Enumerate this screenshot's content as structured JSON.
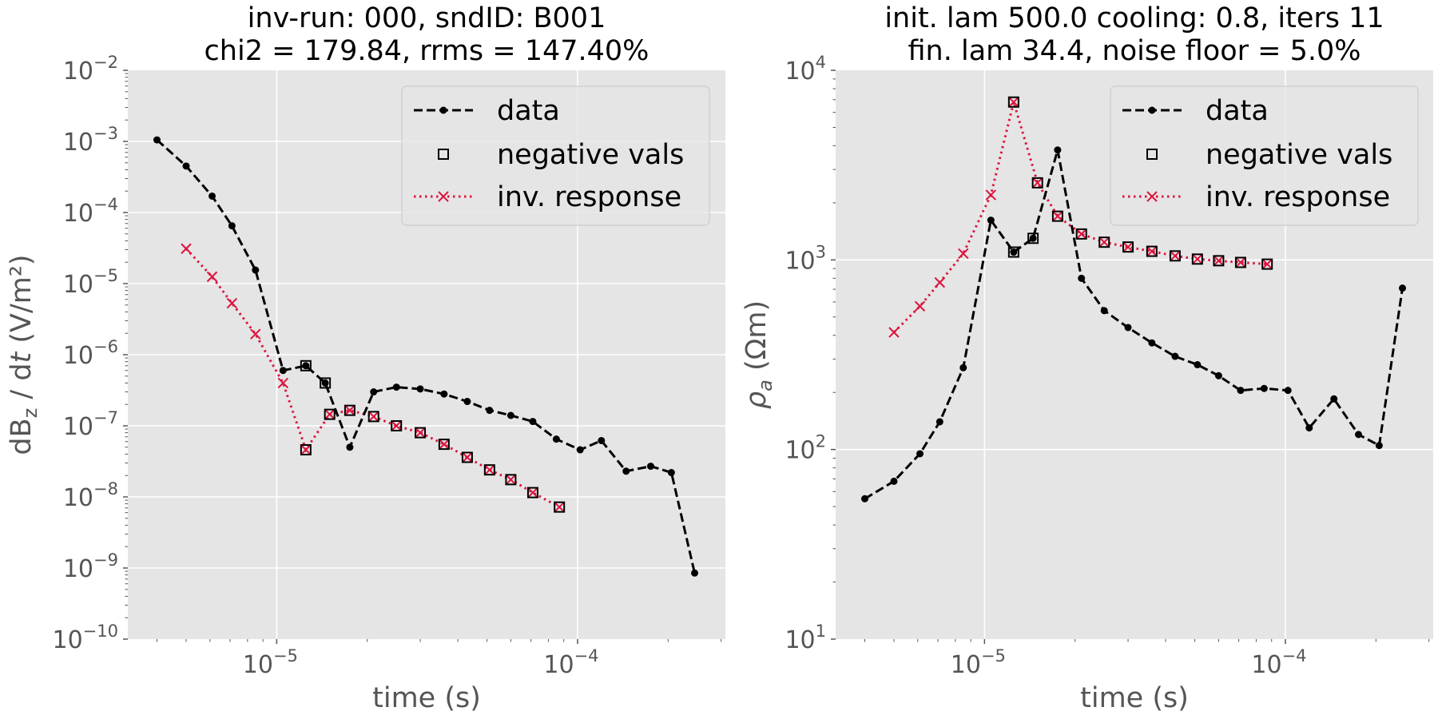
{
  "chart_data": [
    {
      "type": "line",
      "title_lines": [
        "inv-run: 000, sndID: B001",
        "chi2 = 179.84, rrms = 147.40%"
      ],
      "xlabel": "time (s)",
      "ylabel": "dB_z / dt (V/m²)",
      "ylabel_parts": {
        "main": "dB",
        "sub": "z",
        "mid": " / d",
        "italic": "t",
        "unit": " (V/m²)"
      },
      "xscale": "log",
      "yscale": "log",
      "xlim": [
        3.2e-06,
        0.00031
      ],
      "ylim": [
        1e-10,
        0.01
      ],
      "xticks": [
        {
          "base": "10",
          "exp": "−5",
          "value": 1e-05
        },
        {
          "base": "10",
          "exp": "−4",
          "value": 0.0001
        }
      ],
      "yticks": [
        {
          "base": "10",
          "exp": "−10",
          "value": 1e-10
        },
        {
          "base": "10",
          "exp": "−9",
          "value": 1e-09
        },
        {
          "base": "10",
          "exp": "−8",
          "value": 1e-08
        },
        {
          "base": "10",
          "exp": "−7",
          "value": 1e-07
        },
        {
          "base": "10",
          "exp": "−6",
          "value": 1e-06
        },
        {
          "base": "10",
          "exp": "−5",
          "value": 1e-05
        },
        {
          "base": "10",
          "exp": "−4",
          "value": 0.0001
        },
        {
          "base": "10",
          "exp": "−3",
          "value": 0.001
        },
        {
          "base": "10",
          "exp": "−2",
          "value": 0.01
        }
      ],
      "grid": true,
      "legend_position": "top-right",
      "legend": [
        "data",
        "negative vals",
        "inv. response"
      ],
      "series": [
        {
          "name": "data",
          "color": "#000000",
          "style": "dashed",
          "marker": "dot",
          "x": [
            4e-06,
            5e-06,
            6.1e-06,
            7.1e-06,
            8.5e-06,
            1.05e-05,
            1.25e-05,
            1.45e-05,
            1.75e-05,
            2.1e-05,
            2.5e-05,
            3e-05,
            3.6e-05,
            4.3e-05,
            5.1e-05,
            6e-05,
            7.1e-05,
            8.5e-05,
            0.000102,
            0.00012,
            0.000145,
            0.000175,
            0.000205,
            0.000245
          ],
          "y": [
            0.00105,
            0.00045,
            0.00017,
            6.5e-05,
            1.55e-05,
            6e-07,
            7e-07,
            4e-07,
            5e-08,
            3e-07,
            3.5e-07,
            3.3e-07,
            2.8e-07,
            2.2e-07,
            1.65e-07,
            1.4e-07,
            1.15e-07,
            6.5e-08,
            4.6e-08,
            6.2e-08,
            2.3e-08,
            2.7e-08,
            2.2e-08,
            8.5e-10
          ]
        },
        {
          "name": "negative vals",
          "color": "#000000",
          "style": "none",
          "marker": "square",
          "x": [
            1.25e-05,
            1.45e-05,
            1.25e-05,
            1.5e-05,
            1.75e-05,
            2.1e-05,
            2.5e-05,
            3e-05,
            3.6e-05,
            4.3e-05,
            5.1e-05,
            6e-05,
            7.1e-05,
            8.7e-05
          ],
          "y": [
            7e-07,
            4e-07,
            4.6e-08,
            1.45e-07,
            1.65e-07,
            1.35e-07,
            1e-07,
            8e-08,
            5.5e-08,
            3.6e-08,
            2.4e-08,
            1.75e-08,
            1.15e-08,
            7.2e-09
          ]
        },
        {
          "name": "inv. response",
          "color": "#dc143c",
          "style": "dotted",
          "marker": "x",
          "x": [
            5e-06,
            6.1e-06,
            7.1e-06,
            8.5e-06,
            1.05e-05,
            1.25e-05,
            1.5e-05,
            1.75e-05,
            2.1e-05,
            2.5e-05,
            3e-05,
            3.6e-05,
            4.3e-05,
            5.1e-05,
            6e-05,
            7.1e-05,
            8.7e-05
          ],
          "y": [
            3.1e-05,
            1.25e-05,
            5.3e-06,
            1.95e-06,
            4e-07,
            4.6e-08,
            1.45e-07,
            1.65e-07,
            1.35e-07,
            1e-07,
            8e-08,
            5.5e-08,
            3.6e-08,
            2.4e-08,
            1.75e-08,
            1.15e-08,
            7.2e-09
          ]
        }
      ]
    },
    {
      "type": "line",
      "title_lines": [
        "init. lam 500.0 cooling: 0.8, iters 11",
        "fin. lam 34.4, noise floor = 5.0%"
      ],
      "xlabel": "time (s)",
      "ylabel": "ρa (Ωm)",
      "ylabel_parts": {
        "main": "ρ",
        "sub": "a",
        "unit": " (Ωm)"
      },
      "xscale": "log",
      "yscale": "log",
      "xlim": [
        3.2e-06,
        0.00031
      ],
      "ylim": [
        10,
        10000
      ],
      "xticks": [
        {
          "base": "10",
          "exp": "−5",
          "value": 1e-05
        },
        {
          "base": "10",
          "exp": "−4",
          "value": 0.0001
        }
      ],
      "yticks": [
        {
          "base": "10",
          "exp": "1",
          "value": 10
        },
        {
          "base": "10",
          "exp": "2",
          "value": 100
        },
        {
          "base": "10",
          "exp": "3",
          "value": 1000
        },
        {
          "base": "10",
          "exp": "4",
          "value": 10000
        }
      ],
      "grid": true,
      "legend_position": "top-right",
      "legend": [
        "data",
        "negative vals",
        "inv. response"
      ],
      "series": [
        {
          "name": "data",
          "color": "#000000",
          "style": "dashed",
          "marker": "dot",
          "x": [
            4e-06,
            5e-06,
            6.1e-06,
            7.1e-06,
            8.5e-06,
            1.05e-05,
            1.25e-05,
            1.45e-05,
            1.75e-05,
            2.1e-05,
            2.5e-05,
            3e-05,
            3.6e-05,
            4.3e-05,
            5.1e-05,
            6e-05,
            7.1e-05,
            8.5e-05,
            0.000102,
            0.00012,
            0.000145,
            0.000175,
            0.000205,
            0.000245
          ],
          "y": [
            55,
            68,
            95,
            140,
            270,
            1620,
            1100,
            1300,
            3800,
            800,
            540,
            440,
            365,
            310,
            280,
            245,
            205,
            210,
            205,
            130,
            185,
            120,
            105,
            710
          ]
        },
        {
          "name": "negative vals",
          "color": "#000000",
          "style": "none",
          "marker": "square",
          "x": [
            1.25e-05,
            1.45e-05,
            1.25e-05,
            1.5e-05,
            1.75e-05,
            2.1e-05,
            2.5e-05,
            3e-05,
            3.6e-05,
            4.3e-05,
            5.1e-05,
            6e-05,
            7.1e-05,
            8.7e-05
          ],
          "y": [
            1100,
            1300,
            6800,
            2550,
            1700,
            1370,
            1240,
            1170,
            1110,
            1050,
            1010,
            990,
            970,
            950
          ]
        },
        {
          "name": "inv. response",
          "color": "#dc143c",
          "style": "dotted",
          "marker": "x",
          "x": [
            5e-06,
            6.1e-06,
            7.1e-06,
            8.5e-06,
            1.05e-05,
            1.25e-05,
            1.5e-05,
            1.75e-05,
            2.1e-05,
            2.5e-05,
            3e-05,
            3.6e-05,
            4.3e-05,
            5.1e-05,
            6e-05,
            7.1e-05,
            8.7e-05
          ],
          "y": [
            415,
            570,
            760,
            1080,
            2200,
            6800,
            2550,
            1700,
            1370,
            1240,
            1170,
            1110,
            1050,
            1010,
            990,
            970,
            950
          ]
        }
      ]
    }
  ]
}
